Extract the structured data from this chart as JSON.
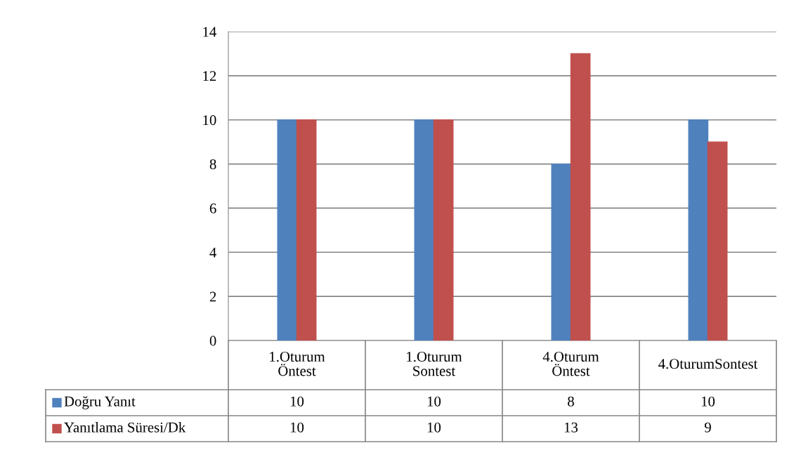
{
  "chart_data": {
    "type": "bar",
    "categories": [
      "1.Oturum Öntest",
      "1.Oturum Sontest",
      "4.Oturum Öntest",
      "4.OturumSontest"
    ],
    "series": [
      {
        "name": "Doğru Yanıt",
        "color": "#4f81bd",
        "values": [
          10,
          10,
          8,
          10
        ]
      },
      {
        "name": "Yanıtlama Süresi/Dk",
        "color": "#c0504d",
        "values": [
          10,
          10,
          13,
          9
        ]
      }
    ],
    "ylim": [
      0,
      14
    ],
    "yticks": [
      0,
      2,
      4,
      6,
      8,
      10,
      12,
      14
    ],
    "grid": "y",
    "data_labels": true,
    "legend": "bottom"
  }
}
